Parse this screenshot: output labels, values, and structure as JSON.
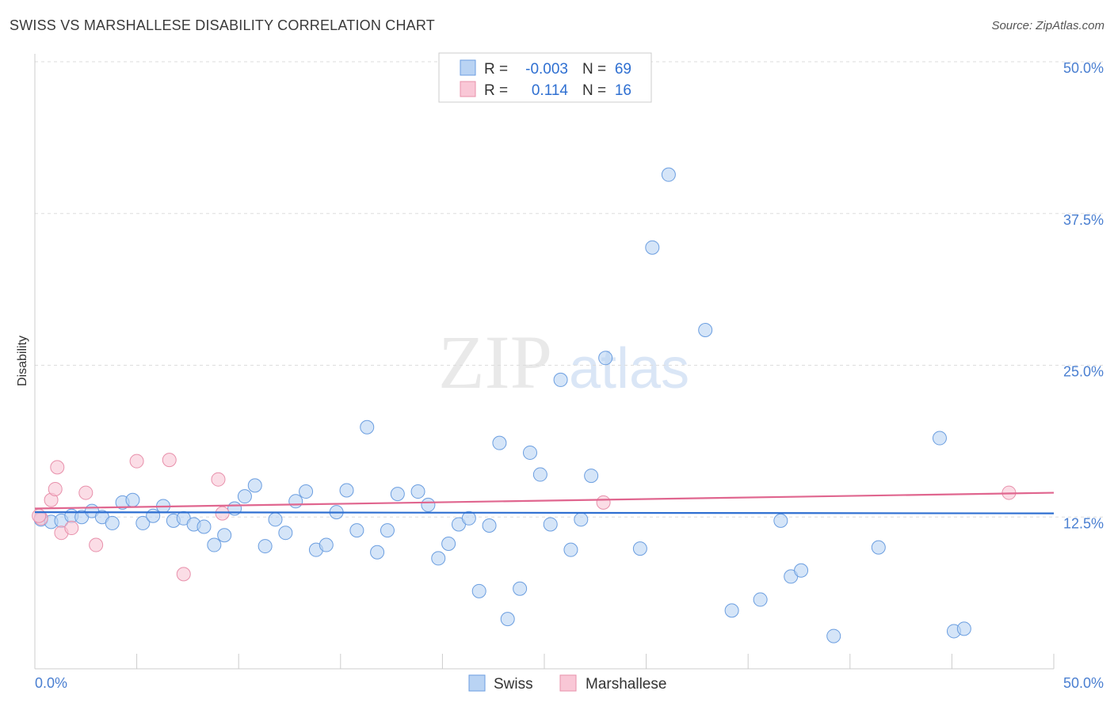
{
  "title": "SWISS VS MARSHALLESE DISABILITY CORRELATION CHART",
  "source": "Source: ZipAtlas.com",
  "watermark": {
    "zip": "ZIP",
    "atlas": "atlas"
  },
  "colors": {
    "swiss_fill": "#b9d3f3",
    "swiss_stroke": "#6b9ee0",
    "swiss_line": "#2e6fd1",
    "marsh_fill": "#f9c7d6",
    "marsh_stroke": "#e890ab",
    "marsh_line": "#e0668f",
    "axis_label": "#4a7fd1",
    "grid": "#dddddd"
  },
  "legend": {
    "rows": [
      {
        "r_label": "R =",
        "r_value": "-0.003",
        "n_label": "N =",
        "n_value": "69",
        "series": "swiss"
      },
      {
        "r_label": "R =",
        "r_value": "0.114",
        "n_label": "N =",
        "n_value": "16",
        "series": "marsh"
      }
    ]
  },
  "chart_data": {
    "type": "scatter",
    "title": "SWISS VS MARSHALLESE DISABILITY CORRELATION CHART",
    "xlabel": "",
    "ylabel": "Disability",
    "xlim": [
      0,
      50
    ],
    "ylim": [
      0,
      50
    ],
    "x_tick_labels": {
      "min": "0.0%",
      "max": "50.0%"
    },
    "y_ticks": [
      {
        "value": 12.5,
        "label": "12.5%"
      },
      {
        "value": 25.0,
        "label": "25.0%"
      },
      {
        "value": 37.5,
        "label": "37.5%"
      },
      {
        "value": 50.0,
        "label": "50.0%"
      }
    ],
    "legend_position": "top-center",
    "series": [
      {
        "name": "Swiss",
        "key": "swiss",
        "trend": {
          "y_at_x0": 12.9,
          "y_at_x50": 12.8
        },
        "points": [
          [
            0.3,
            12.3
          ],
          [
            0.8,
            12.1
          ],
          [
            1.3,
            12.2
          ],
          [
            1.8,
            12.6
          ],
          [
            2.3,
            12.5
          ],
          [
            2.8,
            13.0
          ],
          [
            3.3,
            12.5
          ],
          [
            3.8,
            12.0
          ],
          [
            4.3,
            13.7
          ],
          [
            4.8,
            13.9
          ],
          [
            5.3,
            12.0
          ],
          [
            5.8,
            12.6
          ],
          [
            6.3,
            13.4
          ],
          [
            6.8,
            12.2
          ],
          [
            7.3,
            12.4
          ],
          [
            7.8,
            11.9
          ],
          [
            8.3,
            11.7
          ],
          [
            8.8,
            10.2
          ],
          [
            9.3,
            11.0
          ],
          [
            9.8,
            13.2
          ],
          [
            10.3,
            14.2
          ],
          [
            10.8,
            15.1
          ],
          [
            11.3,
            10.1
          ],
          [
            11.8,
            12.3
          ],
          [
            12.3,
            11.2
          ],
          [
            12.8,
            13.8
          ],
          [
            13.3,
            14.6
          ],
          [
            13.8,
            9.8
          ],
          [
            14.3,
            10.2
          ],
          [
            14.8,
            12.9
          ],
          [
            15.3,
            14.7
          ],
          [
            15.8,
            11.4
          ],
          [
            16.3,
            19.9
          ],
          [
            16.8,
            9.6
          ],
          [
            17.3,
            11.4
          ],
          [
            17.8,
            14.4
          ],
          [
            18.8,
            14.6
          ],
          [
            19.3,
            13.5
          ],
          [
            19.8,
            9.1
          ],
          [
            20.3,
            10.3
          ],
          [
            20.8,
            11.9
          ],
          [
            21.3,
            12.4
          ],
          [
            21.8,
            6.4
          ],
          [
            22.3,
            11.8
          ],
          [
            22.8,
            18.6
          ],
          [
            23.2,
            4.1
          ],
          [
            23.8,
            6.6
          ],
          [
            24.3,
            17.8
          ],
          [
            24.8,
            16.0
          ],
          [
            25.3,
            11.9
          ],
          [
            25.8,
            23.8
          ],
          [
            26.3,
            9.8
          ],
          [
            26.8,
            12.3
          ],
          [
            27.3,
            15.9
          ],
          [
            28.0,
            25.6
          ],
          [
            29.7,
            9.9
          ],
          [
            30.3,
            34.7
          ],
          [
            31.1,
            40.7
          ],
          [
            32.9,
            27.9
          ],
          [
            34.2,
            4.8
          ],
          [
            35.6,
            5.7
          ],
          [
            36.6,
            12.2
          ],
          [
            37.1,
            7.6
          ],
          [
            37.6,
            8.1
          ],
          [
            39.2,
            2.7
          ],
          [
            41.4,
            10.0
          ],
          [
            44.4,
            19.0
          ],
          [
            45.1,
            3.1
          ],
          [
            45.6,
            3.3
          ]
        ]
      },
      {
        "name": "Marshallese",
        "key": "marsh",
        "trend": {
          "y_at_x0": 13.2,
          "y_at_x50": 14.5
        },
        "points": [
          [
            0.3,
            12.4
          ],
          [
            0.8,
            13.9
          ],
          [
            1.0,
            14.8
          ],
          [
            1.1,
            16.6
          ],
          [
            1.3,
            11.2
          ],
          [
            1.8,
            11.6
          ],
          [
            2.5,
            14.5
          ],
          [
            3.0,
            10.2
          ],
          [
            5.0,
            17.1
          ],
          [
            6.6,
            17.2
          ],
          [
            7.3,
            7.8
          ],
          [
            9.0,
            15.6
          ],
          [
            9.2,
            12.8
          ],
          [
            27.9,
            13.7
          ],
          [
            47.8,
            14.5
          ],
          [
            0.2,
            12.6
          ]
        ]
      }
    ]
  },
  "bottom_legend": {
    "swiss": "Swiss",
    "marsh": "Marshallese"
  }
}
